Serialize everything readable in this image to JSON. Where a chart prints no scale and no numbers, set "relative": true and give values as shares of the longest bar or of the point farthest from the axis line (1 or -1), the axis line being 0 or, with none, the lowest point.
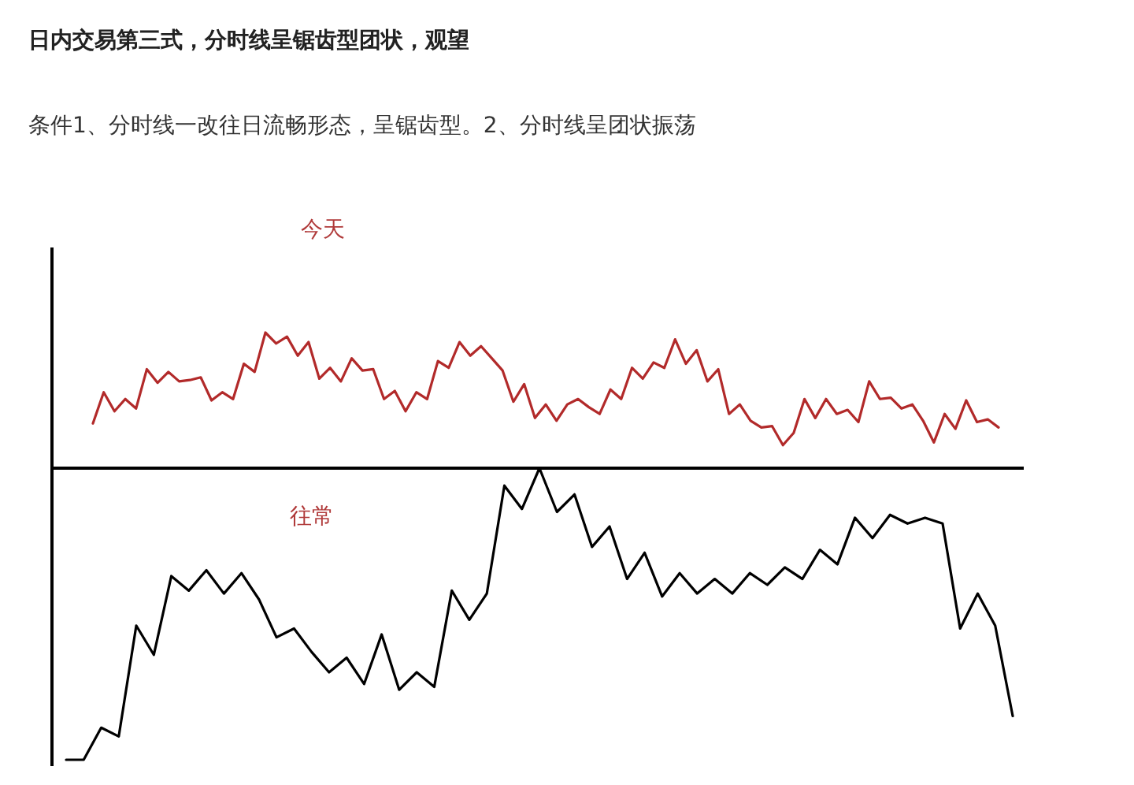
{
  "chart_data": [
    {
      "type": "line",
      "title": "今天",
      "relative": true,
      "annotations": [
        "日内交易第三式，分时线呈锯齿型团状，观望",
        "条件1、分时线一改往日流畅形态，呈锯齿型。2、分时线呈团状振荡"
      ],
      "categories": [
        null,
        null,
        null,
        null,
        null,
        null,
        null,
        null,
        null,
        null,
        null,
        null,
        null,
        null,
        null,
        null,
        null,
        null,
        null,
        null,
        null,
        null,
        null,
        null,
        null,
        null,
        null,
        null,
        null,
        null,
        null,
        null,
        null,
        null,
        null,
        null,
        null,
        null,
        null,
        null,
        null,
        null,
        null,
        null,
        null,
        null,
        null,
        null,
        null,
        null,
        null,
        null,
        null,
        null,
        null,
        null,
        null,
        null,
        null,
        null,
        null,
        null,
        null,
        null,
        null,
        null,
        null,
        null,
        null,
        null,
        null,
        null,
        null,
        null,
        null,
        null,
        null,
        null,
        null,
        null,
        null,
        null,
        null,
        null,
        null
      ],
      "series": [
        {
          "color": "#b22a2a",
          "values": [
            0.33,
            0.56,
            0.42,
            0.51,
            0.44,
            0.73,
            0.63,
            0.71,
            0.64,
            0.65,
            0.67,
            0.5,
            0.56,
            0.51,
            0.77,
            0.71,
            1,
            0.92,
            0.97,
            0.83,
            0.93,
            0.66,
            0.74,
            0.64,
            0.81,
            0.72,
            0.73,
            0.51,
            0.57,
            0.42,
            0.56,
            0.51,
            0.79,
            0.74,
            0.93,
            0.83,
            0.9,
            0.81,
            0.72,
            0.49,
            0.62,
            0.37,
            0.47,
            0.35,
            0.47,
            0.51,
            0.45,
            0.4,
            0.58,
            0.51,
            0.74,
            0.66,
            0.78,
            0.74,
            0.95,
            0.77,
            0.87,
            0.64,
            0.73,
            0.4,
            0.47,
            0.35,
            0.3,
            0.31,
            0.17,
            0.26,
            0.51,
            0.37,
            0.51,
            0.4,
            0.43,
            0.34,
            0.64,
            0.51,
            0.52,
            0.44,
            0.47,
            0.35,
            0.19,
            0.4,
            0.29,
            0.5,
            0.34,
            0.36,
            0.3
          ]
        }
      ]
    },
    {
      "type": "line",
      "title": "往常",
      "relative": true,
      "categories": [
        null,
        null,
        null,
        null,
        null,
        null,
        null,
        null,
        null,
        null,
        null,
        null,
        null,
        null,
        null,
        null,
        null,
        null,
        null,
        null,
        null,
        null,
        null,
        null,
        null,
        null,
        null,
        null,
        null,
        null,
        null,
        null,
        null,
        null,
        null,
        null,
        null,
        null,
        null,
        null,
        null,
        null,
        null,
        null,
        null,
        null,
        null,
        null,
        null,
        null,
        null,
        null,
        null,
        null,
        null
      ],
      "series": [
        {
          "color": "#000000",
          "values": [
            0,
            0,
            0.11,
            0.08,
            0.46,
            0.36,
            0.63,
            0.58,
            0.65,
            0.57,
            0.64,
            0.55,
            0.42,
            0.45,
            0.37,
            0.3,
            0.35,
            0.26,
            0.43,
            0.24,
            0.3,
            0.25,
            0.58,
            0.48,
            0.57,
            0.94,
            0.86,
            1,
            0.85,
            0.91,
            0.73,
            0.8,
            0.62,
            0.71,
            0.56,
            0.64,
            0.57,
            0.62,
            0.57,
            0.64,
            0.6,
            0.66,
            0.62,
            0.72,
            0.67,
            0.83,
            0.76,
            0.84,
            0.81,
            0.83,
            0.81,
            0.45,
            0.57,
            0.46,
            0.15
          ]
        }
      ]
    }
  ]
}
